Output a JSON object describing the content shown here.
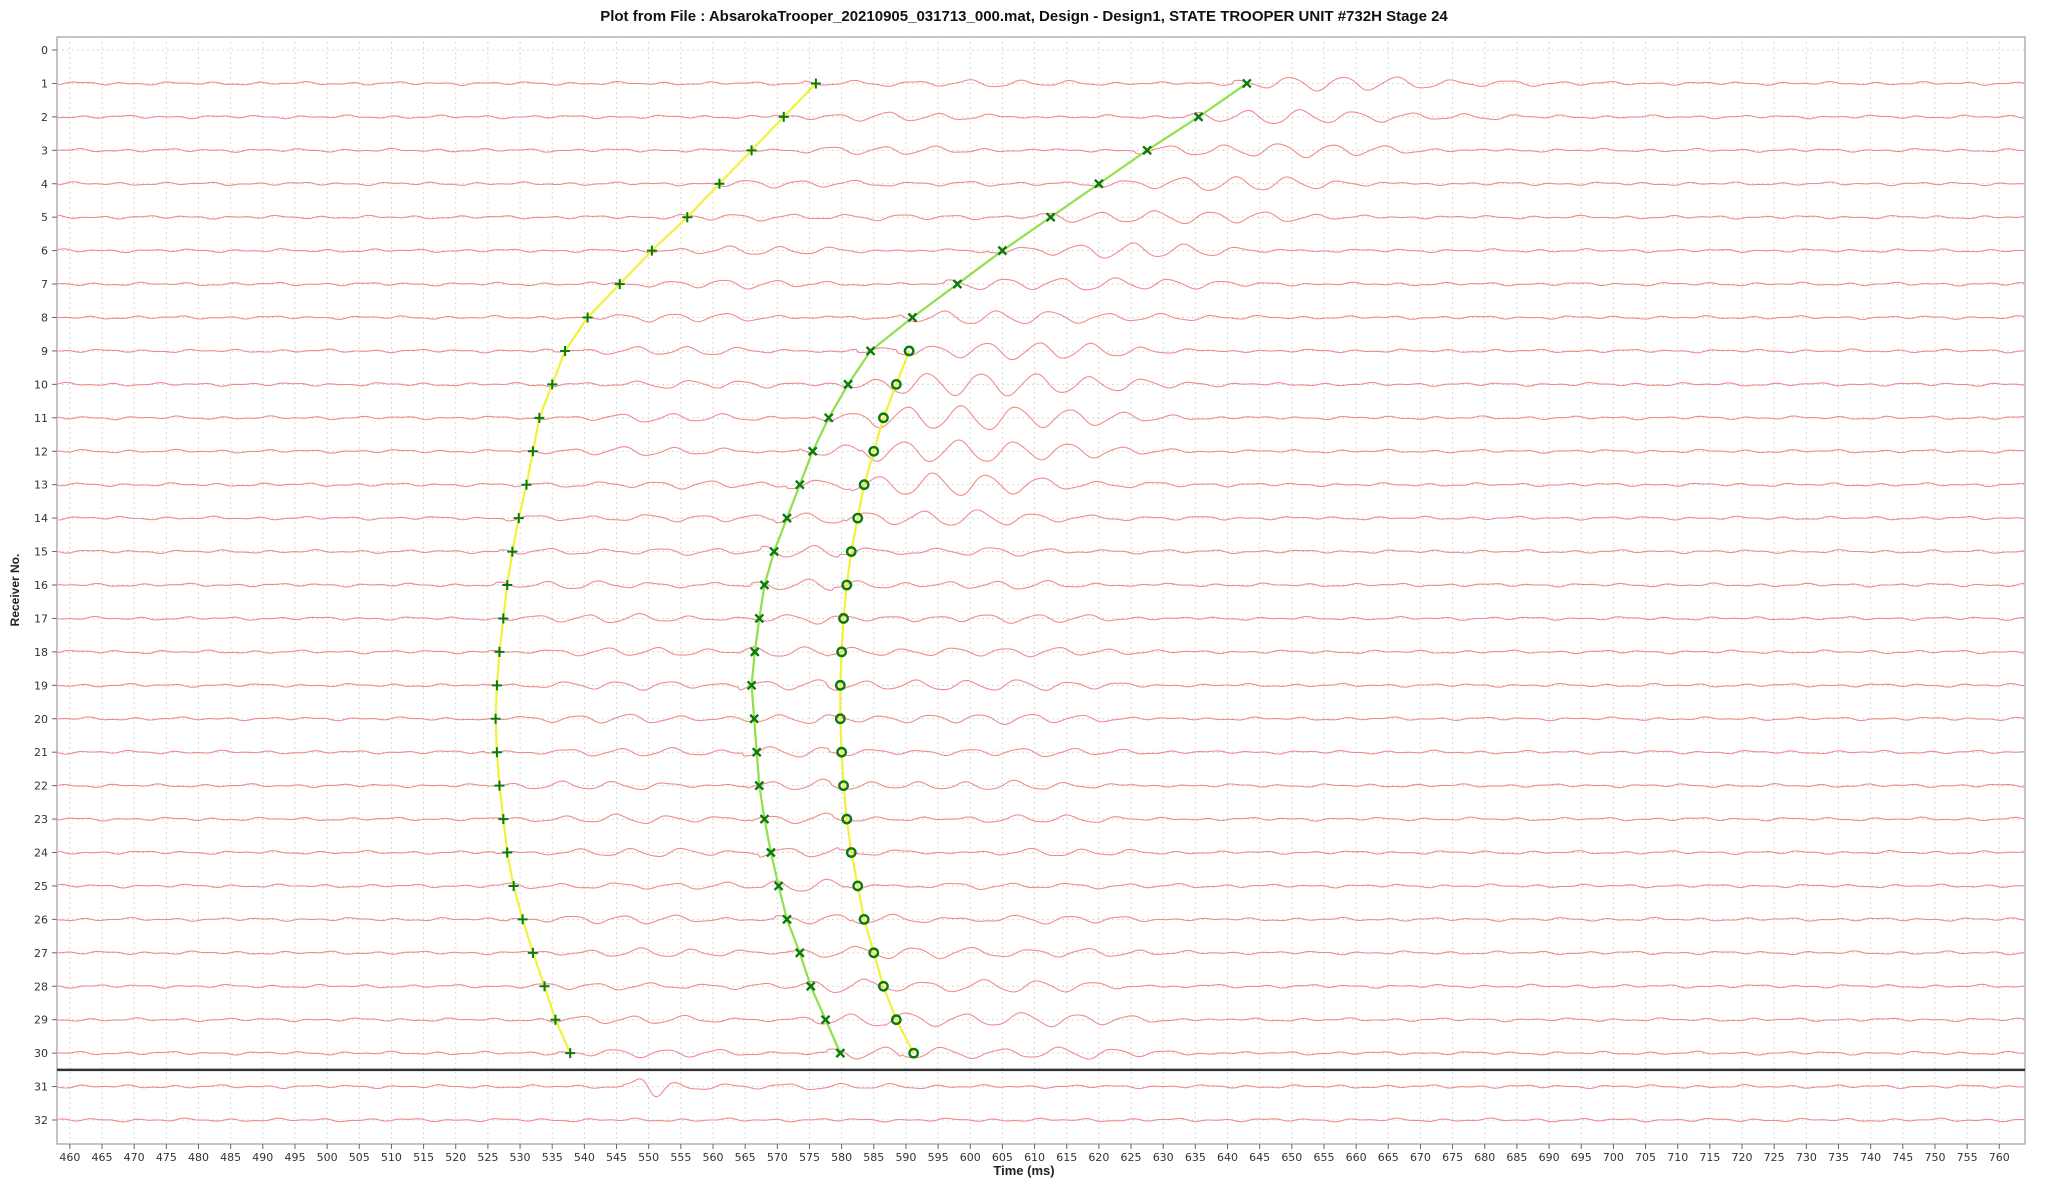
{
  "chart_data": {
    "type": "line",
    "title": "Plot from File : AbsarokaTrooper_20210905_031713_000.mat, Design - Design1, STATE TROOPER UNIT #732H Stage 24",
    "xlabel": "Time (ms)",
    "ylabel": "Receiver No.",
    "xlim": [
      458,
      764
    ],
    "ylim": [
      0,
      32
    ],
    "y_inverted": true,
    "grid": true,
    "x_ticks": [
      460,
      465,
      470,
      475,
      480,
      485,
      490,
      495,
      500,
      505,
      510,
      515,
      520,
      525,
      530,
      535,
      540,
      545,
      550,
      555,
      560,
      565,
      570,
      575,
      580,
      585,
      590,
      595,
      600,
      605,
      610,
      615,
      620,
      625,
      630,
      635,
      640,
      645,
      650,
      655,
      660,
      665,
      670,
      675,
      680,
      685,
      690,
      695,
      700,
      705,
      710,
      715,
      720,
      725,
      730,
      735,
      740,
      745,
      750,
      755,
      760
    ],
    "y_ticks": [
      0,
      1,
      2,
      3,
      4,
      5,
      6,
      7,
      8,
      9,
      10,
      11,
      12,
      13,
      14,
      15,
      16,
      17,
      18,
      19,
      20,
      21,
      22,
      23,
      24,
      25,
      26,
      27,
      28,
      29,
      30,
      31,
      32
    ],
    "separator_after_receiver": 30.5,
    "colors": {
      "trace": "#f08080",
      "grid": "#d8d8d8",
      "pick_curve_yellow": "#f2f23a",
      "pick_curve_green": "#8fe04a",
      "marker": "#0a7a0a",
      "separator": "#333333"
    },
    "series": [
      {
        "marker": "+",
        "curve": "yellow",
        "receivers": [
          1,
          2,
          3,
          4,
          5,
          6,
          7,
          8,
          9,
          10,
          11,
          12,
          13,
          14,
          15,
          16,
          17,
          18,
          19,
          20,
          21,
          22,
          23,
          24,
          25,
          26,
          27,
          28,
          29,
          30
        ],
        "values": [
          576,
          571,
          566,
          561,
          556,
          550.5,
          545.5,
          540.5,
          537,
          535,
          533,
          532,
          531,
          529.8,
          528.8,
          528,
          527.4,
          526.8,
          526.4,
          526.2,
          526.4,
          526.8,
          527.4,
          528,
          529,
          530.4,
          532,
          533.8,
          535.5,
          537.8
        ]
      },
      {
        "marker": "x",
        "curve": "green",
        "receivers": [
          1,
          2,
          3,
          4,
          5,
          6,
          7,
          8,
          9,
          10,
          11,
          12,
          13,
          14,
          15,
          16,
          17,
          18,
          19,
          20,
          21,
          22,
          23,
          24,
          25,
          26,
          27,
          28,
          29,
          30
        ],
        "values": [
          643,
          635.5,
          627.5,
          620,
          612.5,
          605,
          598,
          591,
          584.5,
          581,
          578,
          575.5,
          573.5,
          571.5,
          569.5,
          568,
          567.2,
          566.5,
          566,
          566.4,
          566.8,
          567.2,
          568,
          569,
          570.2,
          571.5,
          573.5,
          575.2,
          577.5,
          579.8
        ]
      },
      {
        "marker": "o",
        "curve": "yellow",
        "receivers": [
          9,
          10,
          11,
          12,
          13,
          14,
          15,
          16,
          17,
          18,
          19,
          20,
          21,
          22,
          23,
          24,
          25,
          26,
          27,
          28,
          29,
          30
        ],
        "values": [
          590.5,
          588.5,
          586.5,
          585,
          583.5,
          582.5,
          581.5,
          580.8,
          580.3,
          580,
          579.8,
          579.8,
          580,
          580.3,
          580.8,
          581.5,
          582.5,
          583.5,
          585,
          586.5,
          588.5,
          591.2
        ]
      }
    ]
  }
}
